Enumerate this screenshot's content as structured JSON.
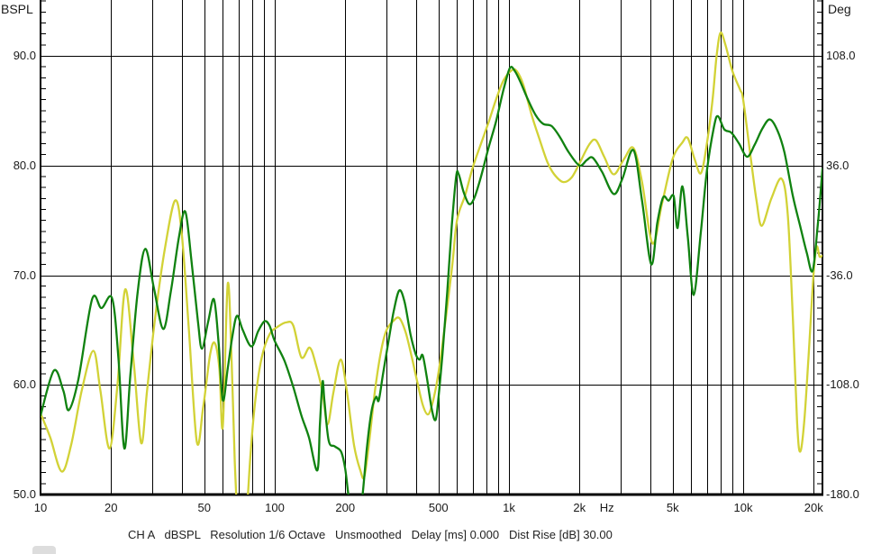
{
  "window": {
    "background": "#ffffff"
  },
  "status_bar": {
    "text": "CH A   dBSPL   Resolution 1/6 Octave   Unsmoothed   Delay [ms] 0.000   Dist Rise [dB] 30.00",
    "segments": [
      "CH A",
      "dBSPL",
      "Resolution 1/6 Octave",
      "Unsmoothed",
      "Delay [ms] 0.000",
      "Dist Rise [dB] 30.00"
    ]
  },
  "chart_data": {
    "type": "line",
    "title": "",
    "x_scale": "log",
    "xlabel_unit": "Hz",
    "x_range_hz": [
      10,
      21800
    ],
    "y_left": {
      "title": "BSPL",
      "ticks": [
        {
          "value": 90,
          "label": "90.0"
        },
        {
          "value": 80,
          "label": "80.0"
        },
        {
          "value": 70,
          "label": "70.0"
        },
        {
          "value": 60,
          "label": "60.0"
        },
        {
          "value": 50,
          "label": "50.0"
        }
      ],
      "minor_step_db": 1,
      "range": [
        50,
        95
      ]
    },
    "y_right": {
      "title": "Deg",
      "ticks": [
        {
          "at_db": 90,
          "label": "108.0"
        },
        {
          "at_db": 80,
          "label": "36.0"
        },
        {
          "at_db": 70,
          "label": "-36.0"
        },
        {
          "at_db": 60,
          "label": "-108.0"
        },
        {
          "at_db": 50,
          "label": "-180.0"
        }
      ]
    },
    "x_ticks": [
      {
        "f": 10,
        "label": "10"
      },
      {
        "f": 20,
        "label": "20"
      },
      {
        "f": 50,
        "label": "50"
      },
      {
        "f": 100,
        "label": "100"
      },
      {
        "f": 200,
        "label": "200"
      },
      {
        "f": 500,
        "label": "500"
      },
      {
        "f": 1000,
        "label": "1k"
      },
      {
        "f": 2000,
        "label": "2k"
      },
      {
        "f": 2620,
        "label": "Hz"
      },
      {
        "f": 5000,
        "label": "5k"
      },
      {
        "f": 10000,
        "label": "10k"
      },
      {
        "f": 20000,
        "label": "20k"
      }
    ],
    "gridlines_x_hz": [
      20,
      30,
      40,
      50,
      60,
      70,
      80,
      90,
      100,
      200,
      300,
      400,
      500,
      600,
      700,
      800,
      900,
      1000,
      2000,
      3000,
      4000,
      5000,
      6000,
      7000,
      8000,
      9000,
      10000,
      20000
    ],
    "gridlines_y_db": [
      90,
      80,
      70,
      60
    ],
    "legend": "none",
    "series": [
      {
        "name": "frequency-response-yellow",
        "color": "#d2d236",
        "points": [
          [
            10,
            57.4
          ],
          [
            11,
            55.2
          ],
          [
            12.3,
            52.1
          ],
          [
            13.5,
            54.5
          ],
          [
            15,
            59.5
          ],
          [
            16.8,
            63.1
          ],
          [
            18,
            59.5
          ],
          [
            19.7,
            54.2
          ],
          [
            21.3,
            60
          ],
          [
            23,
            68.7
          ],
          [
            25,
            62
          ],
          [
            26.9,
            54.7
          ],
          [
            28.5,
            59.5
          ],
          [
            31,
            66.5
          ],
          [
            34,
            72.5
          ],
          [
            37.5,
            76.8
          ],
          [
            40,
            74
          ],
          [
            43,
            65
          ],
          [
            46.5,
            54.8
          ],
          [
            49.5,
            58
          ],
          [
            53,
            62.8
          ],
          [
            55.5,
            63.8
          ],
          [
            58,
            61.5
          ],
          [
            60,
            56.2
          ],
          [
            63,
            69.2
          ],
          [
            65.5,
            62
          ],
          [
            67.5,
            53
          ],
          [
            70,
            46.5
          ],
          [
            73,
            44.5
          ],
          [
            76,
            48.5
          ],
          [
            79,
            54
          ],
          [
            83,
            59
          ],
          [
            88,
            62.5
          ],
          [
            95,
            64.6
          ],
          [
            103,
            65.3
          ],
          [
            112,
            65.7
          ],
          [
            120,
            65.4
          ],
          [
            130,
            62.5
          ],
          [
            141,
            63.4
          ],
          [
            150,
            61.8
          ],
          [
            160,
            59.3
          ],
          [
            168,
            56.4
          ],
          [
            178,
            59.3
          ],
          [
            191,
            62.3
          ],
          [
            203,
            59.5
          ],
          [
            218,
            54.5
          ],
          [
            232,
            52.2
          ],
          [
            241,
            51.6
          ],
          [
            252,
            54.5
          ],
          [
            268,
            59.5
          ],
          [
            285,
            63.2
          ],
          [
            300,
            65
          ],
          [
            320,
            65.8
          ],
          [
            340,
            66.1
          ],
          [
            362,
            64.8
          ],
          [
            385,
            62.5
          ],
          [
            405,
            60.4
          ],
          [
            428,
            58.2
          ],
          [
            450,
            57.3
          ],
          [
            468,
            58.1
          ],
          [
            490,
            60
          ],
          [
            515,
            63
          ],
          [
            570,
            70.5
          ],
          [
            600,
            75
          ],
          [
            650,
            77.3
          ],
          [
            700,
            79.8
          ],
          [
            760,
            82
          ],
          [
            820,
            84
          ],
          [
            880,
            86
          ],
          [
            950,
            87.8
          ],
          [
            1030,
            88.7
          ],
          [
            1080,
            88.6
          ],
          [
            1150,
            87.4
          ],
          [
            1250,
            84.6
          ],
          [
            1350,
            82.4
          ],
          [
            1460,
            80.3
          ],
          [
            1560,
            79.2
          ],
          [
            1700,
            78.5
          ],
          [
            1850,
            78.9
          ],
          [
            2000,
            80.2
          ],
          [
            2200,
            81.9
          ],
          [
            2350,
            82.3
          ],
          [
            2550,
            80.8
          ],
          [
            2800,
            79.2
          ],
          [
            3100,
            80.6
          ],
          [
            3400,
            81.6
          ],
          [
            3700,
            78.5
          ],
          [
            4100,
            72.9
          ],
          [
            4500,
            76.5
          ],
          [
            5000,
            80.6
          ],
          [
            5500,
            82.1
          ],
          [
            5800,
            82.5
          ],
          [
            6200,
            80.6
          ],
          [
            6600,
            79.3
          ],
          [
            7000,
            82
          ],
          [
            7400,
            86
          ],
          [
            7700,
            90
          ],
          [
            8000,
            92.1
          ],
          [
            8400,
            91
          ],
          [
            9000,
            88.6
          ],
          [
            9700,
            86.9
          ],
          [
            10000,
            86
          ],
          [
            10800,
            80.5
          ],
          [
            11400,
            76.8
          ],
          [
            12000,
            74.5
          ],
          [
            13200,
            77
          ],
          [
            14600,
            78.8
          ],
          [
            15500,
            75.5
          ],
          [
            16300,
            66
          ],
          [
            17000,
            56.5
          ],
          [
            17500,
            53.9
          ],
          [
            18200,
            56.5
          ],
          [
            19000,
            62.5
          ],
          [
            20000,
            70.3
          ],
          [
            20600,
            72.6
          ],
          [
            21200,
            71.7
          ],
          [
            21800,
            71.8
          ]
        ]
      },
      {
        "name": "frequency-response-green",
        "color": "#108210",
        "points": [
          [
            10,
            57.2
          ],
          [
            11.4,
            61.3
          ],
          [
            12.5,
            59.5
          ],
          [
            13.2,
            57.7
          ],
          [
            14.5,
            60.5
          ],
          [
            16.6,
            67.8
          ],
          [
            18.2,
            67
          ],
          [
            20.2,
            67.9
          ],
          [
            21.5,
            62.5
          ],
          [
            22.8,
            54.2
          ],
          [
            24.2,
            61
          ],
          [
            26,
            68.5
          ],
          [
            28,
            72.4
          ],
          [
            30.5,
            68.8
          ],
          [
            33.4,
            65.1
          ],
          [
            36,
            68.5
          ],
          [
            39,
            73.5
          ],
          [
            41.5,
            75.8
          ],
          [
            44,
            71.5
          ],
          [
            47,
            65.8
          ],
          [
            48.9,
            63.3
          ],
          [
            52,
            65.8
          ],
          [
            55,
            67.8
          ],
          [
            57.5,
            64
          ],
          [
            60,
            58.6
          ],
          [
            63,
            61.5
          ],
          [
            66,
            64.5
          ],
          [
            69,
            66.3
          ],
          [
            73,
            65
          ],
          [
            79.5,
            63.5
          ],
          [
            85,
            64.9
          ],
          [
            90.5,
            65.8
          ],
          [
            95,
            65.4
          ],
          [
            100,
            64
          ],
          [
            110,
            62.2
          ],
          [
            120,
            59.8
          ],
          [
            130,
            57.2
          ],
          [
            140,
            55.2
          ],
          [
            152,
            52.2
          ],
          [
            156,
            56.5
          ],
          [
            160,
            60.3
          ],
          [
            163,
            58.5
          ],
          [
            170,
            54.9
          ],
          [
            180,
            54.4
          ],
          [
            192,
            53.9
          ],
          [
            200,
            52.3
          ],
          [
            207,
            49.7
          ],
          [
            215,
            47.8
          ],
          [
            228,
            47.8
          ],
          [
            237,
            49.9
          ],
          [
            248,
            54.5
          ],
          [
            260,
            57.8
          ],
          [
            271,
            58.9
          ],
          [
            278,
            58.6
          ],
          [
            290,
            61
          ],
          [
            305,
            63.8
          ],
          [
            322,
            66.7
          ],
          [
            340,
            68.6
          ],
          [
            358,
            67.6
          ],
          [
            380,
            64.6
          ],
          [
            400,
            62.8
          ],
          [
            415,
            62.3
          ],
          [
            428,
            62.7
          ],
          [
            445,
            60.8
          ],
          [
            468,
            57.8
          ],
          [
            486,
            56.8
          ],
          [
            500,
            58.8
          ],
          [
            520,
            62.8
          ],
          [
            545,
            68.5
          ],
          [
            570,
            74.5
          ],
          [
            595,
            79
          ],
          [
            610,
            79.2
          ],
          [
            640,
            77.6
          ],
          [
            675,
            76.5
          ],
          [
            710,
            77
          ],
          [
            760,
            79
          ],
          [
            820,
            81.7
          ],
          [
            880,
            84
          ],
          [
            950,
            87
          ],
          [
            1010,
            88.9
          ],
          [
            1060,
            88.6
          ],
          [
            1120,
            87.6
          ],
          [
            1200,
            86.1
          ],
          [
            1300,
            84.6
          ],
          [
            1400,
            83.8
          ],
          [
            1520,
            83.6
          ],
          [
            1650,
            82.6
          ],
          [
            1800,
            81.2
          ],
          [
            2000,
            80
          ],
          [
            2150,
            80.5
          ],
          [
            2280,
            80.7
          ],
          [
            2500,
            79.4
          ],
          [
            2800,
            77.4
          ],
          [
            3050,
            78.8
          ],
          [
            3400,
            81.4
          ],
          [
            3700,
            76.8
          ],
          [
            4050,
            71
          ],
          [
            4300,
            74.8
          ],
          [
            4550,
            77.1
          ],
          [
            4800,
            76.8
          ],
          [
            5050,
            77.2
          ],
          [
            5250,
            74.3
          ],
          [
            5500,
            78.1
          ],
          [
            5800,
            73.5
          ],
          [
            6150,
            68.2
          ],
          [
            6600,
            74
          ],
          [
            7000,
            79.5
          ],
          [
            7500,
            83.5
          ],
          [
            7800,
            84.5
          ],
          [
            8300,
            83.3
          ],
          [
            8900,
            83
          ],
          [
            9600,
            82
          ],
          [
            10400,
            80.8
          ],
          [
            11200,
            81.9
          ],
          [
            12100,
            83.4
          ],
          [
            13000,
            84.2
          ],
          [
            14000,
            83.2
          ],
          [
            15000,
            81.2
          ],
          [
            16300,
            77.2
          ],
          [
            17500,
            74.5
          ],
          [
            18700,
            72
          ],
          [
            19800,
            70.4
          ],
          [
            20800,
            74.5
          ],
          [
            21400,
            77.5
          ],
          [
            21800,
            79.7
          ]
        ]
      }
    ]
  }
}
